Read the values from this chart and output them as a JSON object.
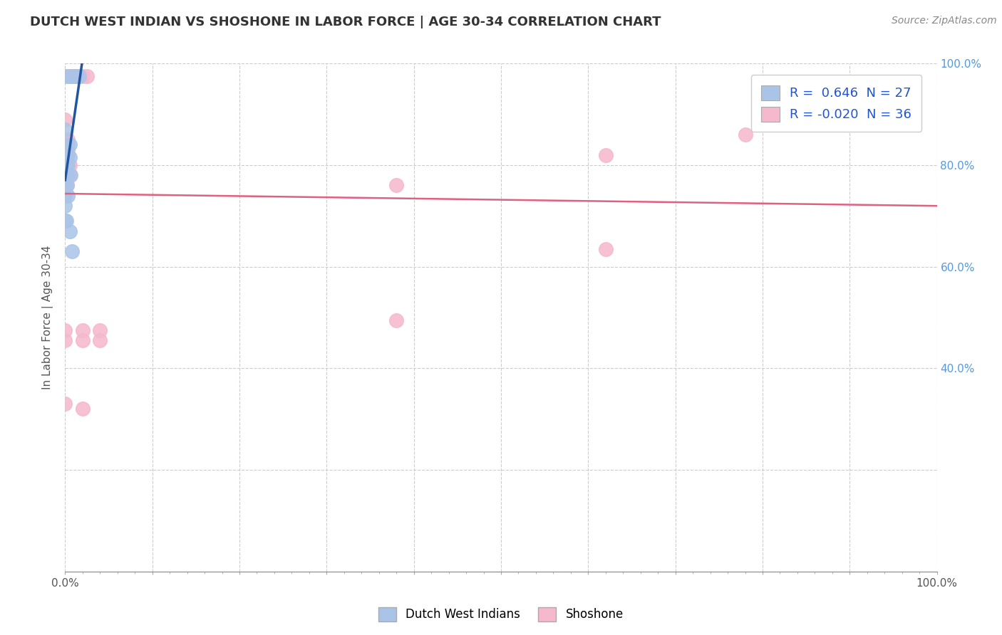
{
  "title": "DUTCH WEST INDIAN VS SHOSHONE IN LABOR FORCE | AGE 30-34 CORRELATION CHART",
  "source": "Source: ZipAtlas.com",
  "ylabel": "In Labor Force | Age 30-34",
  "xlim": [
    0.0,
    1.0
  ],
  "ylim": [
    0.0,
    1.0
  ],
  "grid_color": "#cccccc",
  "background_color": "#ffffff",
  "dutch_color": "#aac4e8",
  "shoshone_color": "#f5b8cc",
  "dutch_line_color": "#2255a0",
  "shoshone_line_color": "#e06080",
  "R_dutch": 0.646,
  "N_dutch": 27,
  "R_shoshone": -0.02,
  "N_shoshone": 36,
  "legend_label_dutch": "Dutch West Indians",
  "legend_label_shoshone": "Shoshone",
  "dutch_points": [
    [
      0.0,
      0.975
    ],
    [
      0.005,
      0.975
    ],
    [
      0.008,
      0.975
    ],
    [
      0.01,
      0.975
    ],
    [
      0.013,
      0.975
    ],
    [
      0.016,
      0.975
    ],
    [
      0.0,
      0.87
    ],
    [
      0.003,
      0.84
    ],
    [
      0.005,
      0.84
    ],
    [
      0.0,
      0.82
    ],
    [
      0.003,
      0.82
    ],
    [
      0.005,
      0.815
    ],
    [
      0.0,
      0.8
    ],
    [
      0.002,
      0.8
    ],
    [
      0.003,
      0.8
    ],
    [
      0.0,
      0.78
    ],
    [
      0.002,
      0.78
    ],
    [
      0.006,
      0.78
    ],
    [
      0.0,
      0.76
    ],
    [
      0.002,
      0.76
    ],
    [
      0.0,
      0.74
    ],
    [
      0.003,
      0.74
    ],
    [
      0.0,
      0.72
    ],
    [
      0.0,
      0.69
    ],
    [
      0.001,
      0.69
    ],
    [
      0.005,
      0.67
    ],
    [
      0.008,
      0.63
    ]
  ],
  "shoshone_points": [
    [
      0.0,
      0.975
    ],
    [
      0.004,
      0.975
    ],
    [
      0.007,
      0.975
    ],
    [
      0.01,
      0.975
    ],
    [
      0.013,
      0.975
    ],
    [
      0.02,
      0.975
    ],
    [
      0.025,
      0.975
    ],
    [
      0.0,
      0.89
    ],
    [
      0.0,
      0.85
    ],
    [
      0.003,
      0.85
    ],
    [
      0.0,
      0.83
    ],
    [
      0.003,
      0.83
    ],
    [
      0.0,
      0.81
    ],
    [
      0.002,
      0.81
    ],
    [
      0.0,
      0.8
    ],
    [
      0.002,
      0.8
    ],
    [
      0.005,
      0.8
    ],
    [
      0.0,
      0.78
    ],
    [
      0.002,
      0.78
    ],
    [
      0.005,
      0.78
    ],
    [
      0.0,
      0.76
    ],
    [
      0.002,
      0.76
    ],
    [
      0.0,
      0.74
    ],
    [
      0.38,
      0.76
    ],
    [
      0.62,
      0.82
    ],
    [
      0.78,
      0.86
    ],
    [
      0.38,
      0.495
    ],
    [
      0.62,
      0.635
    ],
    [
      0.0,
      0.475
    ],
    [
      0.02,
      0.475
    ],
    [
      0.04,
      0.475
    ],
    [
      0.0,
      0.455
    ],
    [
      0.02,
      0.455
    ],
    [
      0.04,
      0.455
    ],
    [
      0.02,
      0.32
    ],
    [
      0.0,
      0.33
    ]
  ]
}
